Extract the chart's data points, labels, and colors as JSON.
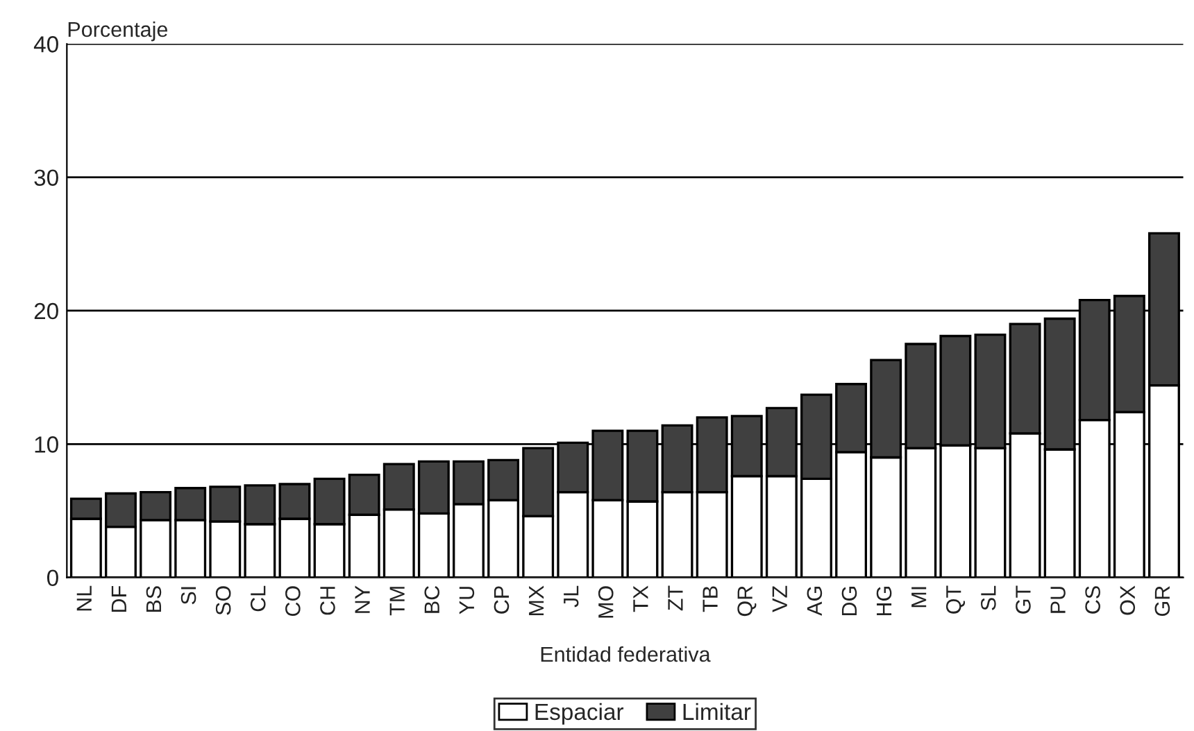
{
  "chart_data": {
    "type": "bar",
    "stacked": true,
    "xlabel": "Entidad federativa",
    "ylabel": "Porcentaje",
    "categories": [
      "NL",
      "DF",
      "BS",
      "SI",
      "SO",
      "CL",
      "CO",
      "CH",
      "NY",
      "TM",
      "BC",
      "YU",
      "CP",
      "MX",
      "JL",
      "MO",
      "TX",
      "ZT",
      "TB",
      "QR",
      "VZ",
      "AG",
      "DG",
      "HG",
      "MI",
      "QT",
      "SL",
      "GT",
      "PU",
      "CS",
      "OX",
      "GR"
    ],
    "series": [
      {
        "name": "Espaciar",
        "color": "#ffffff",
        "values": [
          4.4,
          3.8,
          4.3,
          4.3,
          4.2,
          4.0,
          4.4,
          4.0,
          4.7,
          5.1,
          4.8,
          5.5,
          5.8,
          4.6,
          6.4,
          5.8,
          5.7,
          6.4,
          6.4,
          7.6,
          7.6,
          7.4,
          9.4,
          9.0,
          9.7,
          9.9,
          9.7,
          10.8,
          9.6,
          11.8,
          12.4,
          14.4
        ]
      },
      {
        "name": "Limitar",
        "color": "#404040",
        "values": [
          1.5,
          2.5,
          2.1,
          2.4,
          2.6,
          2.9,
          2.6,
          3.4,
          3.0,
          3.4,
          3.9,
          3.2,
          3.0,
          5.1,
          3.7,
          5.2,
          5.3,
          5.0,
          5.6,
          4.5,
          5.1,
          6.3,
          5.1,
          7.3,
          7.8,
          8.2,
          8.5,
          8.2,
          9.8,
          9.0,
          8.7,
          11.4
        ]
      }
    ],
    "ylim": [
      0,
      40
    ],
    "yticks": [
      0,
      10,
      20,
      30,
      40
    ],
    "grid": "y",
    "legend": "bottom"
  }
}
